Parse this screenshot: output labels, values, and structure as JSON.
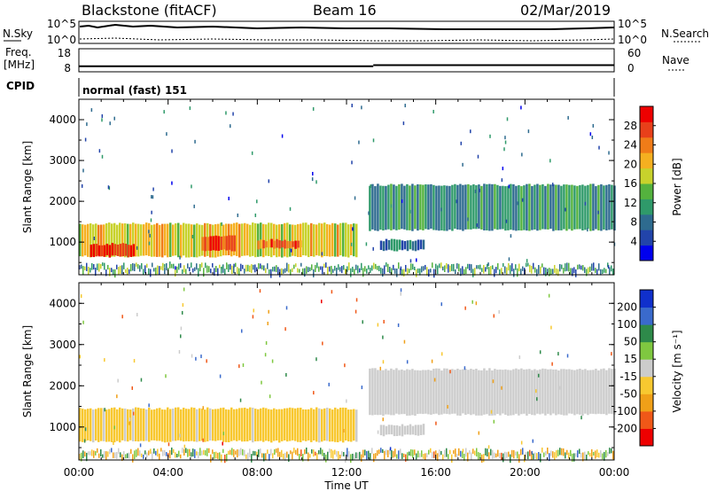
{
  "header": {
    "site": "Blackstone (fitACF)",
    "beam": "Beam 16",
    "date": "02/Mar/2019"
  },
  "summary_panels": {
    "noise": {
      "left_label": "N.Sky",
      "right_label": "N.Search",
      "left_ticks": [
        "10^5",
        "10^0"
      ],
      "right_ticks": [
        "10^5",
        "10^0"
      ]
    },
    "freq": {
      "left_label_1": "Freq.",
      "left_label_2": "[MHz]",
      "left_ticks": [
        "18",
        "8"
      ],
      "right_label": "Nave",
      "right_ticks": [
        "60",
        "0"
      ],
      "series": [
        {
          "x": [
            0,
            13.2
          ],
          "y": 10.4
        },
        {
          "x": [
            13.2,
            24
          ],
          "y": 10.9
        }
      ]
    },
    "cpid": {
      "label": "CPID",
      "mode": "normal (fast) 151"
    }
  },
  "chart_data": [
    {
      "type": "heatmap",
      "title": "",
      "ylabel": "Slant Range [km]",
      "xlabel": "",
      "x_ticks": [
        "00:00",
        "04:00",
        "08:00",
        "12:00",
        "16:00",
        "20:00",
        "00:00"
      ],
      "y_ticks": [
        "4000",
        "3000",
        "2000",
        "1000"
      ],
      "xlim_hours": [
        0,
        24
      ],
      "ylim_km": [
        200,
        4500
      ],
      "colorbar": {
        "label": "Power [dB]",
        "ticks": [
          "28",
          "24",
          "20",
          "16",
          "12",
          "8",
          "4"
        ],
        "range": [
          0,
          30
        ],
        "colors": [
          "#0000ee",
          "#2244aa",
          "#2e6b8f",
          "#2f9a6a",
          "#54b23e",
          "#c8d22c",
          "#f5b020",
          "#f07c18",
          "#e8401a",
          "#ee0000"
        ]
      },
      "regions": [
        {
          "t0": 0.0,
          "t1": 12.5,
          "r0": 650,
          "r1": 1450,
          "value": 18
        },
        {
          "t0": 0.5,
          "t1": 2.5,
          "r0": 650,
          "r1": 950,
          "value": 28
        },
        {
          "t0": 5.5,
          "t1": 7.0,
          "r0": 800,
          "r1": 1150,
          "value": 27
        },
        {
          "t0": 8.0,
          "t1": 10.0,
          "r0": 850,
          "r1": 1050,
          "value": 24
        },
        {
          "t0": 13.0,
          "t1": 24.0,
          "r0": 1300,
          "r1": 2400,
          "value": 10
        },
        {
          "t0": 13.5,
          "t1": 15.5,
          "r0": 800,
          "r1": 1050,
          "value": 8
        }
      ]
    },
    {
      "type": "heatmap",
      "title": "",
      "ylabel": "Slant Range [km]",
      "xlabel": "Time UT",
      "x_ticks": [
        "00:00",
        "04:00",
        "08:00",
        "12:00",
        "16:00",
        "20:00",
        "00:00"
      ],
      "y_ticks": [
        "4000",
        "3000",
        "2000",
        "1000"
      ],
      "xlim_hours": [
        0,
        24
      ],
      "ylim_km": [
        200,
        4500
      ],
      "colorbar": {
        "label": "Velocity [m s⁻¹]",
        "ticks": [
          "200",
          "100",
          "50",
          "15",
          "-15",
          "-50",
          "-100",
          "-200"
        ],
        "range": [
          -250,
          250
        ],
        "colors": [
          "#ee0000",
          "#f05818",
          "#f0a018",
          "#f8c830",
          "#cccccc",
          "#7fc840",
          "#2e8a4a",
          "#3a6acc",
          "#1030cc"
        ]
      },
      "regions": [
        {
          "t0": 0.0,
          "t1": 12.5,
          "r0": 650,
          "r1": 1450,
          "value": -40
        },
        {
          "t0": 13.0,
          "t1": 24.0,
          "r0": 1300,
          "r1": 2400,
          "value": 0
        },
        {
          "t0": 13.5,
          "t1": 15.5,
          "r0": 800,
          "r1": 1050,
          "value": 0
        }
      ]
    }
  ]
}
